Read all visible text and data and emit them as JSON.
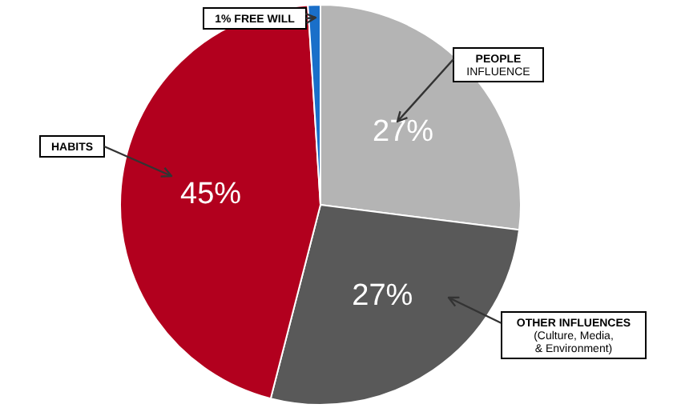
{
  "chart_data": {
    "type": "pie",
    "categories": [
      "PEOPLE INFLUENCE",
      "OTHER INFLUENCES (Culture, Media, & Environment)",
      "HABITS",
      "1% FREE WILL"
    ],
    "values": [
      27,
      27,
      45,
      1
    ],
    "colors": [
      "#b4b4b4",
      "#595959",
      "#b2001e",
      "#1a6fc9"
    ],
    "value_labels": [
      "27%",
      "27%",
      "45%",
      null
    ]
  }
}
